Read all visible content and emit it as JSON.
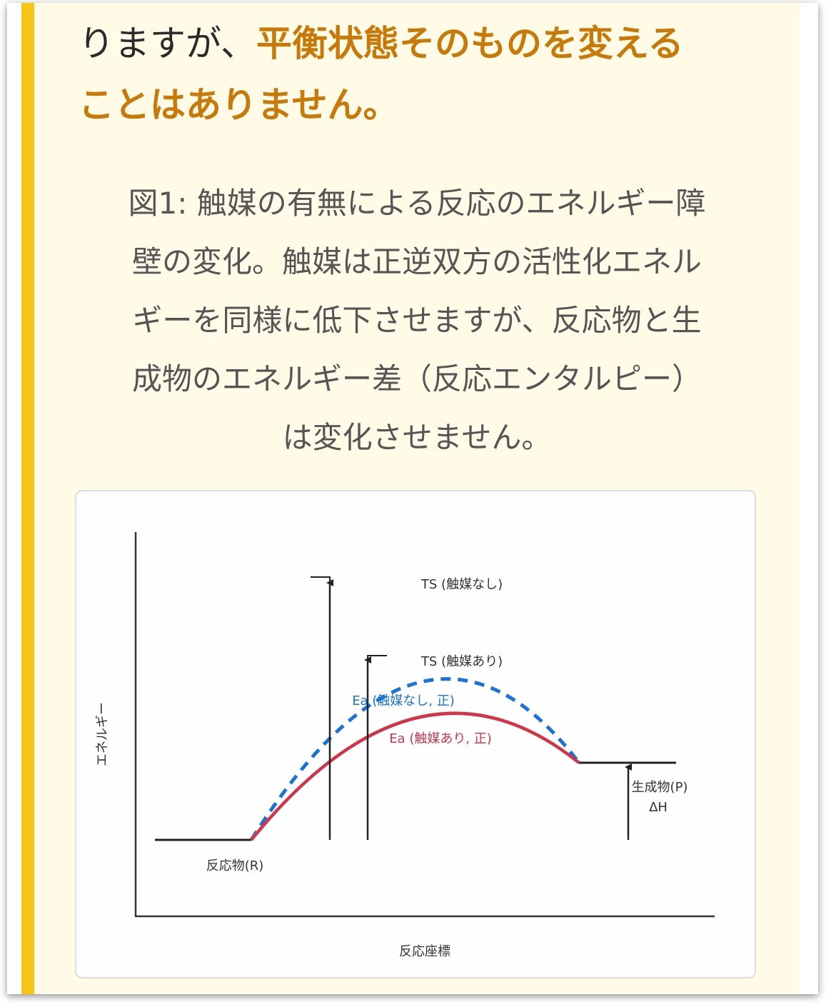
{
  "lead": {
    "plain": "りますが、",
    "highlight_1": "平衡状態そのものを変える",
    "highlight_2": "ことはありません。"
  },
  "caption": {
    "line_1": "図1: 触媒の有無による反応のエネルギー障",
    "line_2": "壁の変化。触媒は正逆双方の活性化エネル",
    "line_3": "ギーを同様に低下させますが、反応物と生",
    "line_4": "成物のエネルギー差（反応エンタルピー）",
    "line_5": "は変化させません。"
  },
  "diagram": {
    "ylabel": "エネルギー",
    "xlabel": "反応座標",
    "reactant_label": "反応物(R)",
    "product_label": "生成物(P)",
    "delta_h_label": "ΔH",
    "ts_uncat_label": "TS (触媒なし)",
    "ts_cat_label": "TS (触媒あり)",
    "ea_uncat_label": "Ea (触媒なし, 正)",
    "ea_cat_label": "Ea (触媒あり, 正)",
    "colors": {
      "uncatalyzed": "#1a73d9",
      "catalyzed": "#d0354a",
      "axis": "#333333"
    }
  }
}
